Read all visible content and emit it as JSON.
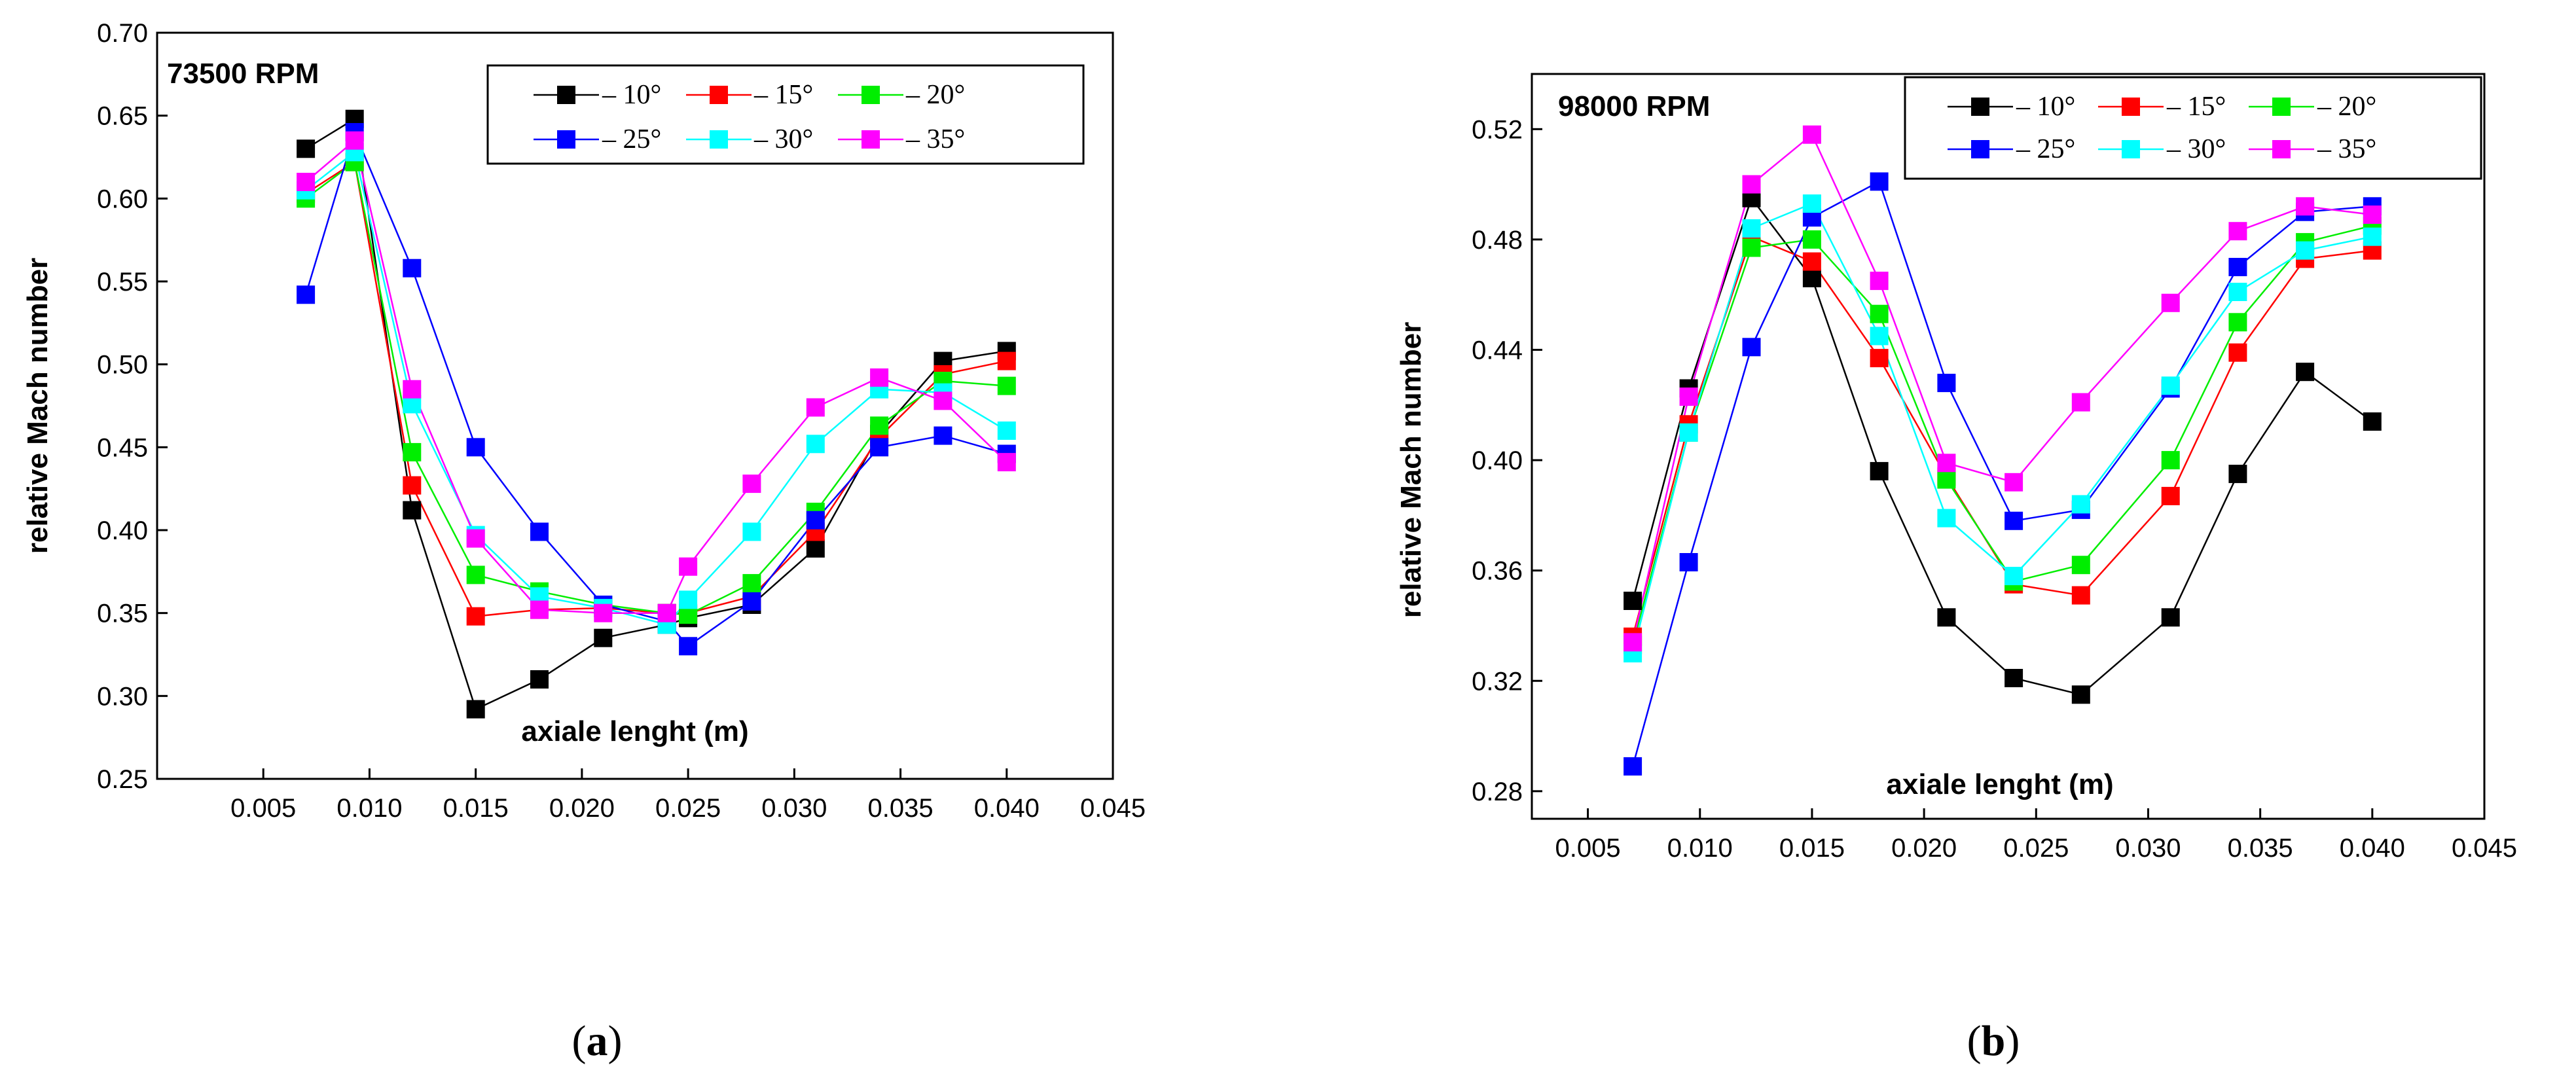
{
  "colors": {
    "-10": "#000000",
    "-15": "#ff0000",
    "-20": "#00ee00",
    "-25": "#0000ff",
    "-30": "#00ffff",
    "-35": "#ff00ff"
  },
  "chart_data": [
    {
      "type": "line",
      "annotation": "73500 RPM",
      "caption_letter": "a",
      "xlabel": "axiale lenght (m)",
      "ylabel": "relative Mach number",
      "xlim": [
        0.0,
        0.045
      ],
      "ylim": [
        0.25,
        0.7
      ],
      "xticks": [
        "0.005",
        "0.010",
        "0.015",
        "0.020",
        "0.025",
        "0.030",
        "0.035",
        "0.040",
        "0.045"
      ],
      "yticks": [
        "0.25",
        "0.30",
        "0.35",
        "0.40",
        "0.45",
        "0.50",
        "0.55",
        "0.60",
        "0.65",
        "0.70"
      ],
      "x": [
        0.007,
        0.0093,
        0.012,
        0.015,
        0.018,
        0.021,
        0.024,
        0.025,
        0.028,
        0.031,
        0.034,
        0.037,
        0.04
      ],
      "series": [
        {
          "name": "– 10°",
          "color_key": "-10",
          "values": [
            0.63,
            0.648,
            0.412,
            0.292,
            0.31,
            0.335,
            0.343,
            0.347,
            0.355,
            0.389,
            0.458,
            0.502,
            0.508
          ]
        },
        {
          "name": "– 15°",
          "color_key": "-15",
          "values": [
            0.603,
            0.622,
            0.427,
            0.348,
            0.352,
            0.353,
            0.35,
            0.35,
            0.36,
            0.399,
            0.456,
            0.494,
            0.502
          ]
        },
        {
          "name": "– 20°",
          "color_key": "-20",
          "values": [
            0.6,
            0.622,
            0.447,
            0.373,
            0.363,
            0.355,
            0.35,
            0.349,
            0.368,
            0.411,
            0.463,
            0.49,
            0.487
          ]
        },
        {
          "name": "– 25°",
          "color_key": "-25",
          "values": [
            0.542,
            0.64,
            0.558,
            0.45,
            0.399,
            0.355,
            0.345,
            0.33,
            0.357,
            0.406,
            0.45,
            0.457,
            0.446
          ]
        },
        {
          "name": "– 30°",
          "color_key": "-30",
          "values": [
            0.605,
            0.628,
            0.476,
            0.397,
            0.36,
            0.353,
            0.343,
            0.358,
            0.399,
            0.452,
            0.485,
            0.483,
            0.46
          ]
        },
        {
          "name": "– 35°",
          "color_key": "-35",
          "values": [
            0.61,
            0.635,
            0.485,
            0.395,
            0.352,
            0.35,
            0.35,
            0.378,
            0.428,
            0.474,
            0.492,
            0.478,
            0.441
          ]
        }
      ]
    },
    {
      "type": "line",
      "annotation": "98000 RPM",
      "caption_letter": "b",
      "xlabel": "axiale lenght (m)",
      "ylabel": "relative Mach number",
      "xlim": [
        0.0025,
        0.045
      ],
      "ylim": [
        0.27,
        0.54
      ],
      "xticks": [
        "0.005",
        "0.010",
        "0.015",
        "0.020",
        "0.025",
        "0.030",
        "0.035",
        "0.040",
        "0.045"
      ],
      "yticks": [
        "0.28",
        "0.32",
        "0.36",
        "0.40",
        "0.44",
        "0.48",
        "0.52"
      ],
      "x": [
        0.007,
        0.0095,
        0.0123,
        0.015,
        0.018,
        0.021,
        0.024,
        0.027,
        0.031,
        0.034,
        0.037,
        0.04
      ],
      "series": [
        {
          "name": "– 10°",
          "color_key": "-10",
          "values": [
            0.349,
            0.426,
            0.495,
            0.466,
            0.396,
            0.343,
            0.321,
            0.315,
            0.343,
            0.395,
            0.432,
            0.414
          ]
        },
        {
          "name": "– 15°",
          "color_key": "-15",
          "values": [
            0.336,
            0.413,
            0.481,
            0.472,
            0.437,
            0.394,
            0.355,
            0.351,
            0.387,
            0.439,
            0.473,
            0.476
          ]
        },
        {
          "name": "– 20°",
          "color_key": "-20",
          "values": [
            0.333,
            0.41,
            0.477,
            0.48,
            0.453,
            0.393,
            0.356,
            0.362,
            0.4,
            0.45,
            0.479,
            0.485
          ]
        },
        {
          "name": "– 25°",
          "color_key": "-25",
          "values": [
            0.289,
            0.363,
            0.441,
            0.488,
            0.501,
            0.428,
            0.378,
            0.382,
            0.426,
            0.47,
            0.49,
            0.492
          ]
        },
        {
          "name": "– 30°",
          "color_key": "-30",
          "values": [
            0.33,
            0.41,
            0.484,
            0.493,
            0.445,
            0.379,
            0.358,
            0.384,
            0.427,
            0.461,
            0.476,
            0.481
          ]
        },
        {
          "name": "– 35°",
          "color_key": "-35",
          "values": [
            0.334,
            0.423,
            0.5,
            0.518,
            0.465,
            0.399,
            0.392,
            0.421,
            0.457,
            0.483,
            0.492,
            0.489
          ]
        }
      ]
    }
  ]
}
